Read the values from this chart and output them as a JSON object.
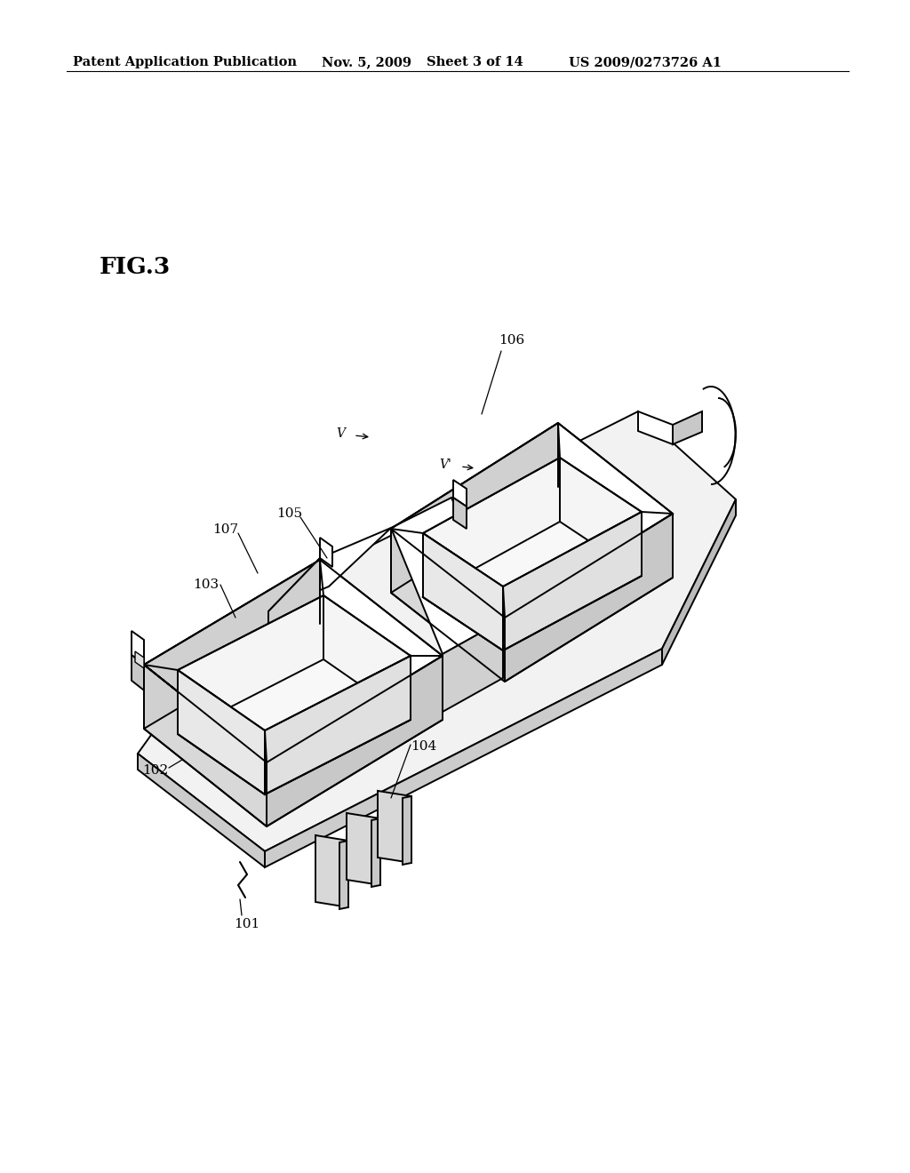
{
  "background_color": "#ffffff",
  "line_color": "#000000",
  "lw": 1.4,
  "header_text": "Patent Application Publication",
  "header_date": "Nov. 5, 2009",
  "header_sheet": "Sheet 3 of 14",
  "header_patent": "US 2009/0273726 A1",
  "fig_label": "FIG.3"
}
